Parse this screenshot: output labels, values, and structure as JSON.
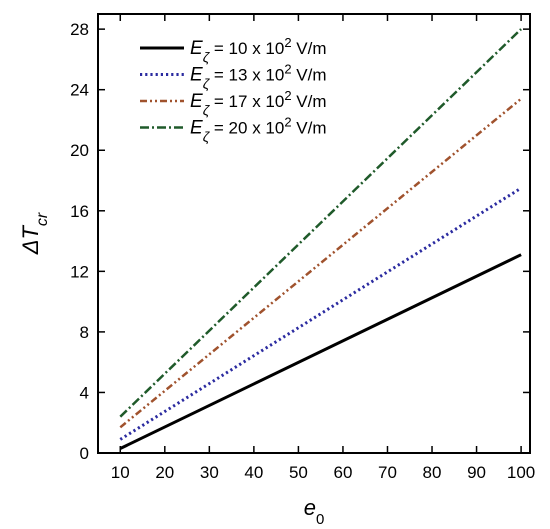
{
  "chart_data": {
    "type": "line",
    "title": "",
    "xlabel": "e",
    "xlabel_sub": "0",
    "ylabel": "ΔT",
    "ylabel_sub": "cr",
    "xlim": [
      5,
      102
    ],
    "ylim": [
      0,
      29
    ],
    "xticks": [
      10,
      20,
      30,
      40,
      50,
      60,
      70,
      80,
      90,
      100
    ],
    "yticks": [
      0,
      4,
      8,
      12,
      16,
      20,
      24,
      28
    ],
    "legend_position": "top-left",
    "series": [
      {
        "legend_parts": [
          "E",
          "ζ",
          " = 10 x 10",
          "2",
          " V/m"
        ],
        "style": "solid",
        "color": "#000000",
        "x": [
          10,
          100
        ],
        "y": [
          0.3,
          13.1
        ]
      },
      {
        "legend_parts": [
          "E",
          "ζ",
          " = 13 x 10",
          "2",
          " V/m"
        ],
        "style": "dotted",
        "color": "#2b2ba0",
        "x": [
          10,
          100
        ],
        "y": [
          0.9,
          17.5
        ]
      },
      {
        "legend_parts": [
          "E",
          "ζ",
          " = 17 x 10",
          "2",
          " V/m"
        ],
        "style": "dash-dot-dot",
        "color": "#a0522d",
        "x": [
          10,
          100
        ],
        "y": [
          1.7,
          23.4
        ]
      },
      {
        "legend_parts": [
          "E",
          "ζ",
          " = 20 x 10",
          "2",
          " V/m"
        ],
        "style": "dash-dot",
        "color": "#1f5a2a",
        "x": [
          10,
          100
        ],
        "y": [
          2.4,
          28.0
        ]
      }
    ]
  }
}
